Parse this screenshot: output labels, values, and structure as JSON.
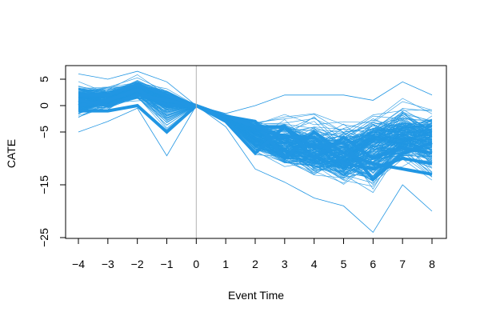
{
  "chart_data": {
    "type": "line",
    "title": "",
    "xlabel": "Event Time",
    "ylabel": "CATE",
    "xlim": [
      -4,
      8
    ],
    "ylim": [
      -25,
      7
    ],
    "x_ticks": [
      -4,
      -3,
      -2,
      -1,
      0,
      1,
      2,
      3,
      4,
      5,
      6,
      7,
      8
    ],
    "x_tick_labels": [
      "−4",
      "−3",
      "−2",
      "−1",
      "0",
      "1",
      "2",
      "3",
      "4",
      "5",
      "6",
      "7",
      "8"
    ],
    "y_ticks": [
      5,
      0,
      -5,
      -15,
      -25
    ],
    "y_tick_labels": [
      "5",
      "0",
      "−5",
      "−15",
      "−25"
    ],
    "reference_line_x": 0,
    "series_color": "#2196e3",
    "reference_line_color": "#b3b3b3",
    "grid": false,
    "legend": "none",
    "x": [
      -4,
      -3,
      -2,
      -1,
      0,
      1,
      2,
      3,
      4,
      5,
      6,
      7,
      8
    ],
    "band_summary": {
      "upper_envelope": [
        6,
        5,
        6.5,
        4.5,
        0,
        -1.5,
        0,
        2,
        2,
        2,
        1,
        4.5,
        2
      ],
      "lower_envelope": [
        -5,
        -3,
        -0.5,
        -9.5,
        0,
        -4,
        -12,
        -14.5,
        -17.5,
        -19,
        -24,
        -15,
        -20
      ],
      "median_path": [
        1,
        1.5,
        3,
        1,
        0,
        -2,
        -6,
        -8,
        -9,
        -10,
        -7,
        -6,
        -6
      ]
    },
    "highlighted_paths": [
      {
        "values": [
          -1,
          -1,
          0,
          -5,
          0,
          -3,
          -9,
          -4,
          -8,
          -7,
          -14,
          -9,
          -7
        ]
      },
      {
        "values": [
          0,
          1,
          3,
          0,
          0,
          -2,
          -3,
          -10,
          -5,
          -9,
          -11,
          -12,
          -13
        ]
      },
      {
        "values": [
          2,
          2,
          4,
          2,
          0,
          -2,
          -4,
          -4,
          -10,
          -6,
          -10,
          -8,
          -9
        ]
      },
      {
        "values": [
          1,
          0,
          2,
          1,
          0,
          -2,
          -4,
          -6,
          -6,
          -11,
          -12,
          -10,
          -11
        ]
      }
    ],
    "n_paths": 220
  }
}
